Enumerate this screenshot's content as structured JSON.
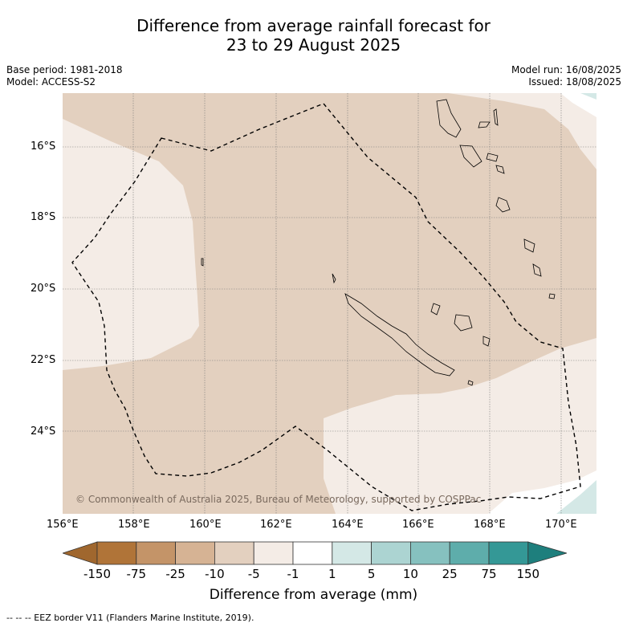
{
  "title_line1": "Difference from average rainfall forecast for",
  "title_line2": "23 to 29 August 2025",
  "base_period": "Base period: 1981-2018",
  "model": "Model: ACCESS-S2",
  "model_run": "Model run: 16/08/2025",
  "issued": "Issued: 18/08/2025",
  "lat_labels": [
    "16°S",
    "18°S",
    "20°S",
    "22°S",
    "24°S"
  ],
  "lon_labels": [
    "156°E",
    "158°E",
    "160°E",
    "162°E",
    "164°E",
    "166°E",
    "168°E",
    "170°E"
  ],
  "copyright": "© Commonwealth of Australia 2025, Bureau of Meteorology, supported by COSPPac",
  "colorbar": {
    "title": "Difference from average (mm)",
    "ticks": [
      "-150",
      "-75",
      "-25",
      "-10",
      "-5",
      "-1",
      "1",
      "5",
      "10",
      "25",
      "75",
      "150"
    ],
    "colors": [
      "#a0672e",
      "#b07438",
      "#c49468",
      "#d6b394",
      "#e3d0bf",
      "#f4ece6",
      "#ffffff",
      "#d4e8e6",
      "#acd4d2",
      "#86c1bf",
      "#5eadab",
      "#349896",
      "#1e7f7d"
    ]
  },
  "legend_colors": {
    "land_dry": "#e3d0bf",
    "land_slight": "#f4ece6",
    "wet_slight": "#d4e8e6"
  },
  "footnote": "--  --  -- EEZ border V11 (Flanders Marine Institute, 2019)."
}
